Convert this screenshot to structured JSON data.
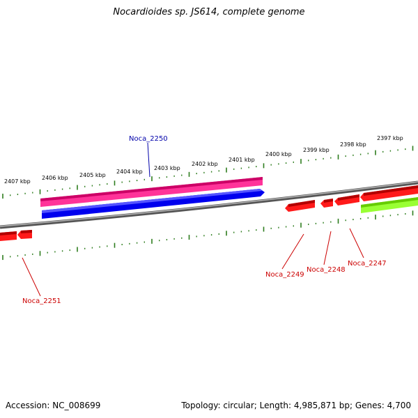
{
  "title": "Nocardioides sp. JS614, complete genome",
  "footer": {
    "accession": "Accession: NC_008699",
    "summary": "Topology: circular; Length: 4,985,871 bp; Genes: 4,700"
  },
  "ruler_labels": [
    "2407 kbp",
    "2406 kbp",
    "2405 kbp",
    "2404 kbp",
    "2403 kbp",
    "2402 kbp",
    "2401 kbp",
    "2400 kbp",
    "2399 kbp",
    "2398 kbp",
    "2397 kbp"
  ],
  "gene_labels": {
    "noca_2250": "Noca_2250",
    "noca_2251": "Noca_2251",
    "noca_2249": "Noca_2249",
    "noca_2248": "Noca_2248",
    "noca_2247": "Noca_2247"
  },
  "colors": {
    "tick": "#2e7d1e",
    "backbone": "#808080",
    "gene_red": "#ff1a1a",
    "gene_blue": "#0000ee",
    "gene_pink": "#ff3399",
    "gene_green": "#99ff33",
    "label_red": "#cc0000",
    "label_blue": "#0000aa"
  }
}
